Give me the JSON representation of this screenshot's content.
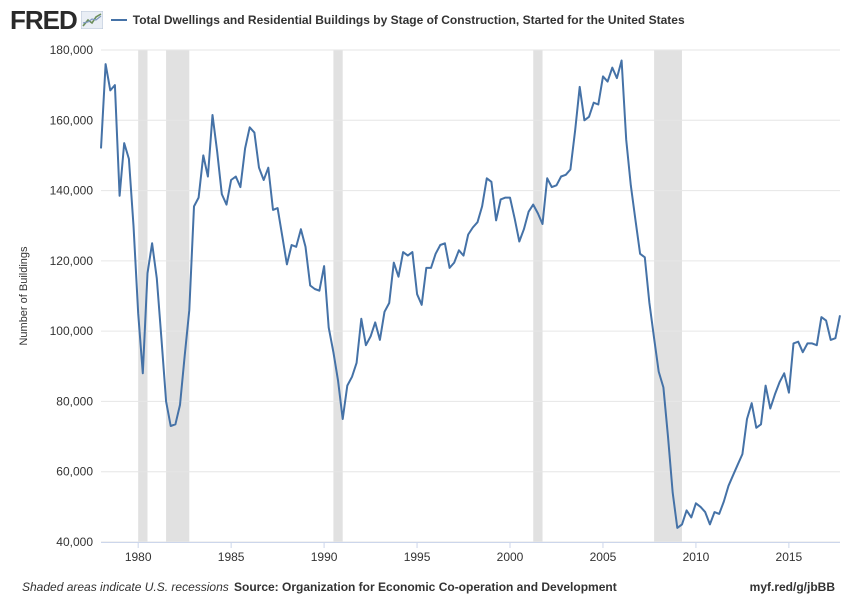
{
  "header": {
    "logo_text": "FRED",
    "logo_icon": "fred-trend-icon"
  },
  "colors": {
    "series": "#4572a7",
    "recession": "#e1e1e1",
    "grid": "#e6e6e6",
    "axis": "#ccd6eb"
  },
  "footer": {
    "note": "Shaded areas indicate U.S. recessions",
    "source": "Source: Organization for Economic Co-operation and Development",
    "link": "myf.red/g/jbBB"
  },
  "chart_data": {
    "type": "line",
    "title": "Total Dwellings and Residential Buildings by Stage of Construction, Started for the United States",
    "ylabel": "Number of Buildings",
    "xlim": [
      1978.0,
      2017.75
    ],
    "ylim": [
      40000,
      180000
    ],
    "x_ticks": [
      1980,
      1985,
      1990,
      1995,
      2000,
      2005,
      2010,
      2015
    ],
    "y_ticks": [
      40000,
      60000,
      80000,
      100000,
      120000,
      140000,
      160000,
      180000
    ],
    "y_tick_labels": [
      "40,000",
      "60,000",
      "80,000",
      "100,000",
      "120,000",
      "140,000",
      "160,000",
      "180,000"
    ],
    "grid": "horizontal",
    "legend": "top",
    "recessions": [
      [
        1980.0,
        1980.5
      ],
      [
        1981.5,
        1982.75
      ],
      [
        1990.5,
        1991.0
      ],
      [
        2001.25,
        2001.75
      ],
      [
        2007.75,
        2009.25
      ]
    ],
    "series": [
      {
        "name": "Total Dwellings and Residential Buildings by Stage of Construction, Started for the United States",
        "x_start": 1978.0,
        "step": 0.25,
        "values": [
          152000,
          176000,
          168500,
          170000,
          138500,
          153500,
          149000,
          130000,
          105000,
          88000,
          116500,
          125000,
          115000,
          98000,
          80000,
          73000,
          73500,
          79000,
          93000,
          106000,
          135500,
          138000,
          150000,
          144000,
          161500,
          151000,
          139000,
          136000,
          143000,
          144000,
          141000,
          152000,
          158000,
          156500,
          146500,
          143000,
          146500,
          134500,
          135000,
          127000,
          119000,
          124500,
          124000,
          129000,
          124000,
          113000,
          112000,
          111500,
          118500,
          101000,
          94000,
          86000,
          75000,
          84500,
          87000,
          91000,
          103500,
          96000,
          98500,
          102500,
          97500,
          105500,
          108000,
          119500,
          115500,
          122500,
          121500,
          122500,
          110500,
          107500,
          118000,
          118000,
          122000,
          124500,
          125000,
          118000,
          119500,
          123000,
          121500,
          127500,
          129500,
          131000,
          135500,
          143500,
          142500,
          131500,
          137500,
          138000,
          138000,
          132000,
          125500,
          129000,
          134000,
          136000,
          133500,
          130500,
          143500,
          141000,
          141500,
          144000,
          144500,
          146000,
          157000,
          169500,
          160000,
          161000,
          165000,
          164500,
          172500,
          171000,
          175000,
          172000,
          177000,
          154500,
          141500,
          131500,
          122000,
          121000,
          108000,
          98000,
          88500,
          84000,
          70000,
          54000,
          44000,
          45000,
          49000,
          47000,
          51000,
          50000,
          48500,
          45000,
          48500,
          48000,
          51500,
          56000,
          59000,
          62000,
          65000,
          75000,
          79500,
          72500,
          73500,
          84500,
          78000,
          82000,
          85500,
          88000,
          82500,
          96500,
          97000,
          94000,
          96500,
          96500,
          96000,
          104000,
          103000,
          97500,
          98000,
          104500
        ]
      }
    ]
  }
}
